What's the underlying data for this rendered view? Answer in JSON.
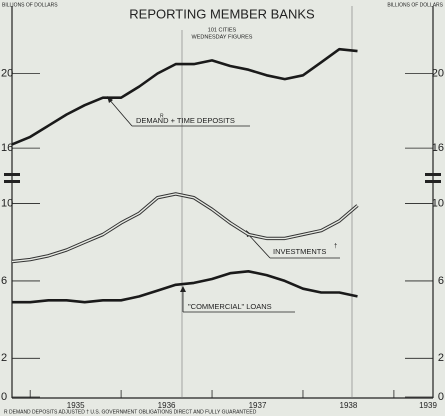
{
  "chart_data": {
    "type": "line",
    "title": "REPORTING MEMBER BANKS",
    "subtitle": [
      "101 CITIES",
      "WEDNESDAY FIGURES"
    ],
    "ylabel": "BILLIONS OF DOLLARS",
    "footnote": "R DEMAND DEPOSITS ADJUSTED    † U.S. GOVERNMENT OBLIGATIONS DIRECT AND FULLY GUARANTEED",
    "x": [
      1934.8,
      1935.0,
      1935.2,
      1935.4,
      1935.6,
      1935.8,
      1936.0,
      1936.2,
      1936.4,
      1936.6,
      1936.8,
      1937.0,
      1937.2,
      1937.4,
      1937.6,
      1937.8,
      1938.0,
      1938.2,
      1938.4,
      1938.6
    ],
    "xlim": [
      1934.8,
      1939.43
    ],
    "xticks": [
      {
        "value": 1935.5,
        "label": "1935"
      },
      {
        "value": 1936.5,
        "label": "1936"
      },
      {
        "value": 1937.5,
        "label": "1937"
      },
      {
        "value": 1938.5,
        "label": "1938"
      },
      {
        "value": 1939.5,
        "label": "1939"
      }
    ],
    "panels": [
      {
        "ylim": [
          14.4,
          23.4
        ],
        "yticks": [
          16,
          20
        ],
        "series": [
          {
            "name": "DEMAND + TIME DEPOSITS",
            "mark": "R",
            "color": "#1a1a1a",
            "style": "solid",
            "values": [
              16.2,
              16.6,
              17.2,
              17.8,
              18.3,
              18.7,
              18.7,
              19.3,
              20.0,
              20.5,
              20.5,
              20.7,
              20.4,
              20.2,
              19.9,
              19.7,
              19.9,
              20.6,
              21.3,
              21.2
            ]
          }
        ]
      },
      {
        "ylim": [
          0,
          10.7
        ],
        "yticks": [
          0,
          2,
          6,
          10
        ],
        "series": [
          {
            "name": "INVESTMENTS",
            "mark": "†",
            "color": "#333333",
            "style": "double",
            "values": [
              7.0,
              7.1,
              7.3,
              7.6,
              8.0,
              8.4,
              9.0,
              9.5,
              10.3,
              10.5,
              10.3,
              9.7,
              9.0,
              8.4,
              8.2,
              8.2,
              8.4,
              8.6,
              9.1,
              9.9
            ]
          },
          {
            "name": "\"COMMERCIAL\" LOANS",
            "color": "#1a1a1a",
            "style": "solid",
            "values": [
              4.9,
              4.9,
              5.0,
              5.0,
              4.9,
              5.0,
              5.0,
              5.2,
              5.5,
              5.8,
              5.9,
              6.1,
              6.4,
              6.5,
              6.3,
              6.0,
              5.6,
              5.4,
              5.4,
              5.2
            ]
          }
        ]
      }
    ]
  }
}
